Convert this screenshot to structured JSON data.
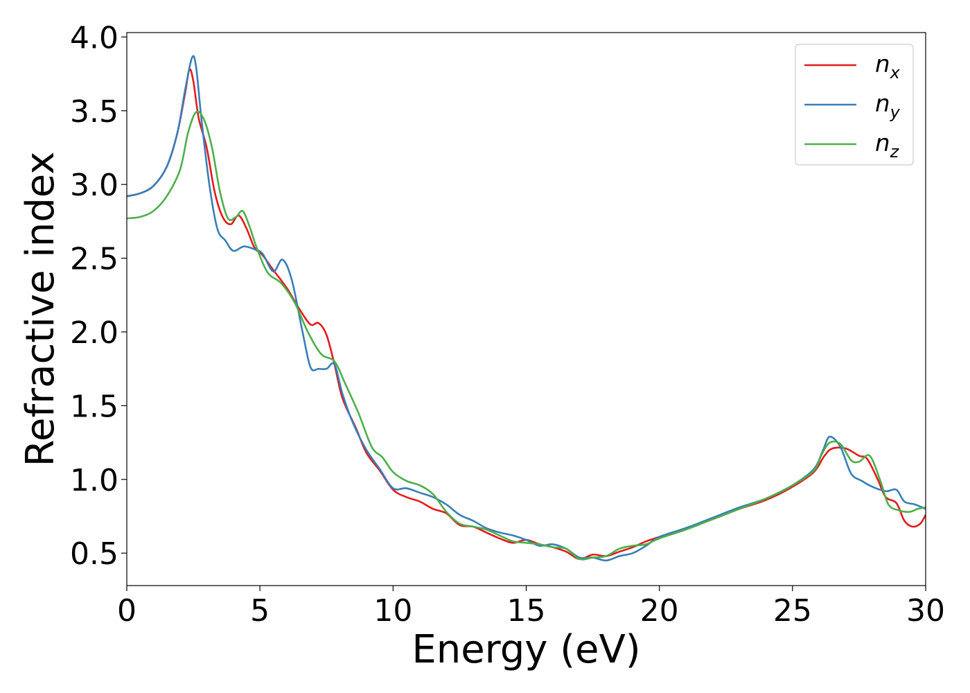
{
  "chart_data": {
    "type": "line",
    "xlabel": "Energy (eV)",
    "ylabel": "Refractive index",
    "xlim": [
      0,
      30
    ],
    "ylim": [
      0.28,
      4.03
    ],
    "x_ticks": [
      0,
      5,
      10,
      15,
      20,
      25,
      30
    ],
    "x_tick_labels": [
      "0",
      "5",
      "10",
      "15",
      "20",
      "25",
      "30"
    ],
    "y_ticks": [
      0.5,
      1.0,
      1.5,
      2.0,
      2.5,
      3.0,
      3.5,
      4.0
    ],
    "y_tick_labels": [
      "0.5",
      "1.0",
      "1.5",
      "2.0",
      "2.5",
      "3.0",
      "3.5",
      "4.0"
    ],
    "grid": false,
    "legend_position": "top-right",
    "series": [
      {
        "name": "n",
        "subscript": "x",
        "color": "#e41a1c",
        "points": [
          [
            0,
            2.92
          ],
          [
            0.5,
            2.94
          ],
          [
            1,
            2.99
          ],
          [
            1.5,
            3.12
          ],
          [
            1.9,
            3.35
          ],
          [
            2.2,
            3.63
          ],
          [
            2.35,
            3.78
          ],
          [
            2.5,
            3.7
          ],
          [
            2.7,
            3.45
          ],
          [
            3.0,
            3.25
          ],
          [
            3.3,
            2.95
          ],
          [
            3.6,
            2.78
          ],
          [
            3.9,
            2.73
          ],
          [
            4.2,
            2.79
          ],
          [
            4.5,
            2.7
          ],
          [
            4.8,
            2.57
          ],
          [
            5.1,
            2.52
          ],
          [
            5.5,
            2.42
          ],
          [
            6.0,
            2.3
          ],
          [
            6.5,
            2.15
          ],
          [
            6.9,
            2.05
          ],
          [
            7.2,
            2.06
          ],
          [
            7.5,
            1.98
          ],
          [
            7.8,
            1.78
          ],
          [
            8.1,
            1.55
          ],
          [
            8.6,
            1.35
          ],
          [
            9.0,
            1.18
          ],
          [
            9.5,
            1.06
          ],
          [
            10.0,
            0.93
          ],
          [
            10.5,
            0.88
          ],
          [
            11.0,
            0.85
          ],
          [
            11.5,
            0.8
          ],
          [
            12.0,
            0.77
          ],
          [
            12.5,
            0.69
          ],
          [
            13.0,
            0.68
          ],
          [
            13.5,
            0.64
          ],
          [
            14.0,
            0.6
          ],
          [
            14.5,
            0.57
          ],
          [
            15.0,
            0.59
          ],
          [
            15.5,
            0.56
          ],
          [
            16.0,
            0.54
          ],
          [
            16.5,
            0.51
          ],
          [
            17.0,
            0.46
          ],
          [
            17.5,
            0.49
          ],
          [
            18.0,
            0.48
          ],
          [
            18.5,
            0.51
          ],
          [
            19.0,
            0.54
          ],
          [
            19.5,
            0.58
          ],
          [
            20.0,
            0.61
          ],
          [
            21.0,
            0.67
          ],
          [
            22.0,
            0.73
          ],
          [
            23.0,
            0.8
          ],
          [
            24.0,
            0.86
          ],
          [
            25.0,
            0.95
          ],
          [
            25.8,
            1.05
          ],
          [
            26.2,
            1.16
          ],
          [
            26.5,
            1.21
          ],
          [
            27.0,
            1.21
          ],
          [
            27.5,
            1.16
          ],
          [
            27.8,
            1.14
          ],
          [
            28.2,
            1.0
          ],
          [
            28.5,
            0.88
          ],
          [
            28.9,
            0.84
          ],
          [
            29.2,
            0.72
          ],
          [
            29.5,
            0.68
          ],
          [
            29.8,
            0.7
          ],
          [
            30.0,
            0.76
          ]
        ]
      },
      {
        "name": "n",
        "subscript": "y",
        "color": "#377eb8",
        "points": [
          [
            0,
            2.92
          ],
          [
            0.5,
            2.94
          ],
          [
            1,
            2.99
          ],
          [
            1.5,
            3.12
          ],
          [
            1.9,
            3.35
          ],
          [
            2.2,
            3.65
          ],
          [
            2.45,
            3.86
          ],
          [
            2.6,
            3.8
          ],
          [
            2.8,
            3.45
          ],
          [
            3.1,
            3.0
          ],
          [
            3.4,
            2.7
          ],
          [
            3.7,
            2.62
          ],
          [
            4.0,
            2.55
          ],
          [
            4.4,
            2.58
          ],
          [
            4.8,
            2.56
          ],
          [
            5.1,
            2.53
          ],
          [
            5.5,
            2.41
          ],
          [
            5.85,
            2.49
          ],
          [
            6.2,
            2.35
          ],
          [
            6.6,
            2.0
          ],
          [
            6.9,
            1.76
          ],
          [
            7.2,
            1.75
          ],
          [
            7.5,
            1.75
          ],
          [
            7.8,
            1.78
          ],
          [
            8.1,
            1.58
          ],
          [
            8.5,
            1.38
          ],
          [
            9.0,
            1.2
          ],
          [
            9.5,
            1.07
          ],
          [
            10.0,
            0.94
          ],
          [
            10.5,
            0.94
          ],
          [
            11.0,
            0.91
          ],
          [
            11.5,
            0.88
          ],
          [
            12.0,
            0.83
          ],
          [
            12.5,
            0.76
          ],
          [
            13.0,
            0.72
          ],
          [
            13.5,
            0.67
          ],
          [
            14.0,
            0.64
          ],
          [
            14.5,
            0.62
          ],
          [
            15.0,
            0.59
          ],
          [
            15.5,
            0.55
          ],
          [
            16.0,
            0.56
          ],
          [
            16.5,
            0.53
          ],
          [
            17.0,
            0.47
          ],
          [
            17.5,
            0.47
          ],
          [
            18.0,
            0.45
          ],
          [
            18.5,
            0.48
          ],
          [
            19.0,
            0.5
          ],
          [
            19.5,
            0.55
          ],
          [
            20.0,
            0.61
          ],
          [
            21.0,
            0.67
          ],
          [
            22.0,
            0.74
          ],
          [
            23.0,
            0.81
          ],
          [
            24.0,
            0.87
          ],
          [
            25.0,
            0.96
          ],
          [
            25.8,
            1.07
          ],
          [
            26.15,
            1.2
          ],
          [
            26.4,
            1.29
          ],
          [
            26.8,
            1.22
          ],
          [
            27.2,
            1.04
          ],
          [
            27.6,
            0.99
          ],
          [
            28.0,
            0.95
          ],
          [
            28.5,
            0.92
          ],
          [
            28.9,
            0.93
          ],
          [
            29.2,
            0.85
          ],
          [
            29.6,
            0.83
          ],
          [
            30.0,
            0.8
          ]
        ]
      },
      {
        "name": "n",
        "subscript": "z",
        "color": "#4daf4a",
        "points": [
          [
            0,
            2.77
          ],
          [
            0.5,
            2.78
          ],
          [
            1,
            2.82
          ],
          [
            1.5,
            2.92
          ],
          [
            2.0,
            3.1
          ],
          [
            2.3,
            3.35
          ],
          [
            2.6,
            3.49
          ],
          [
            2.9,
            3.44
          ],
          [
            3.2,
            3.25
          ],
          [
            3.5,
            2.95
          ],
          [
            3.8,
            2.77
          ],
          [
            4.1,
            2.78
          ],
          [
            4.35,
            2.82
          ],
          [
            4.6,
            2.72
          ],
          [
            4.9,
            2.56
          ],
          [
            5.3,
            2.4
          ],
          [
            5.8,
            2.33
          ],
          [
            6.3,
            2.2
          ],
          [
            6.8,
            2.0
          ],
          [
            7.3,
            1.85
          ],
          [
            7.8,
            1.8
          ],
          [
            8.2,
            1.65
          ],
          [
            8.7,
            1.45
          ],
          [
            9.2,
            1.22
          ],
          [
            9.6,
            1.15
          ],
          [
            10.0,
            1.05
          ],
          [
            10.5,
            0.99
          ],
          [
            11.0,
            0.96
          ],
          [
            11.5,
            0.9
          ],
          [
            12.0,
            0.78
          ],
          [
            12.5,
            0.7
          ],
          [
            13.0,
            0.68
          ],
          [
            13.5,
            0.66
          ],
          [
            14.0,
            0.62
          ],
          [
            14.5,
            0.58
          ],
          [
            15.0,
            0.57
          ],
          [
            15.5,
            0.56
          ],
          [
            16.0,
            0.54
          ],
          [
            16.5,
            0.53
          ],
          [
            17.0,
            0.46
          ],
          [
            17.5,
            0.47
          ],
          [
            18.0,
            0.48
          ],
          [
            18.5,
            0.53
          ],
          [
            19.0,
            0.55
          ],
          [
            19.5,
            0.56
          ],
          [
            20.0,
            0.6
          ],
          [
            21.0,
            0.66
          ],
          [
            22.0,
            0.73
          ],
          [
            23.0,
            0.8
          ],
          [
            24.0,
            0.87
          ],
          [
            25.0,
            0.96
          ],
          [
            25.8,
            1.06
          ],
          [
            26.1,
            1.17
          ],
          [
            26.4,
            1.25
          ],
          [
            26.8,
            1.24
          ],
          [
            27.2,
            1.13
          ],
          [
            27.5,
            1.12
          ],
          [
            27.9,
            1.16
          ],
          [
            28.3,
            0.99
          ],
          [
            28.6,
            0.83
          ],
          [
            29.0,
            0.79
          ],
          [
            29.4,
            0.78
          ],
          [
            29.7,
            0.8
          ],
          [
            30.0,
            0.81
          ]
        ]
      }
    ]
  }
}
